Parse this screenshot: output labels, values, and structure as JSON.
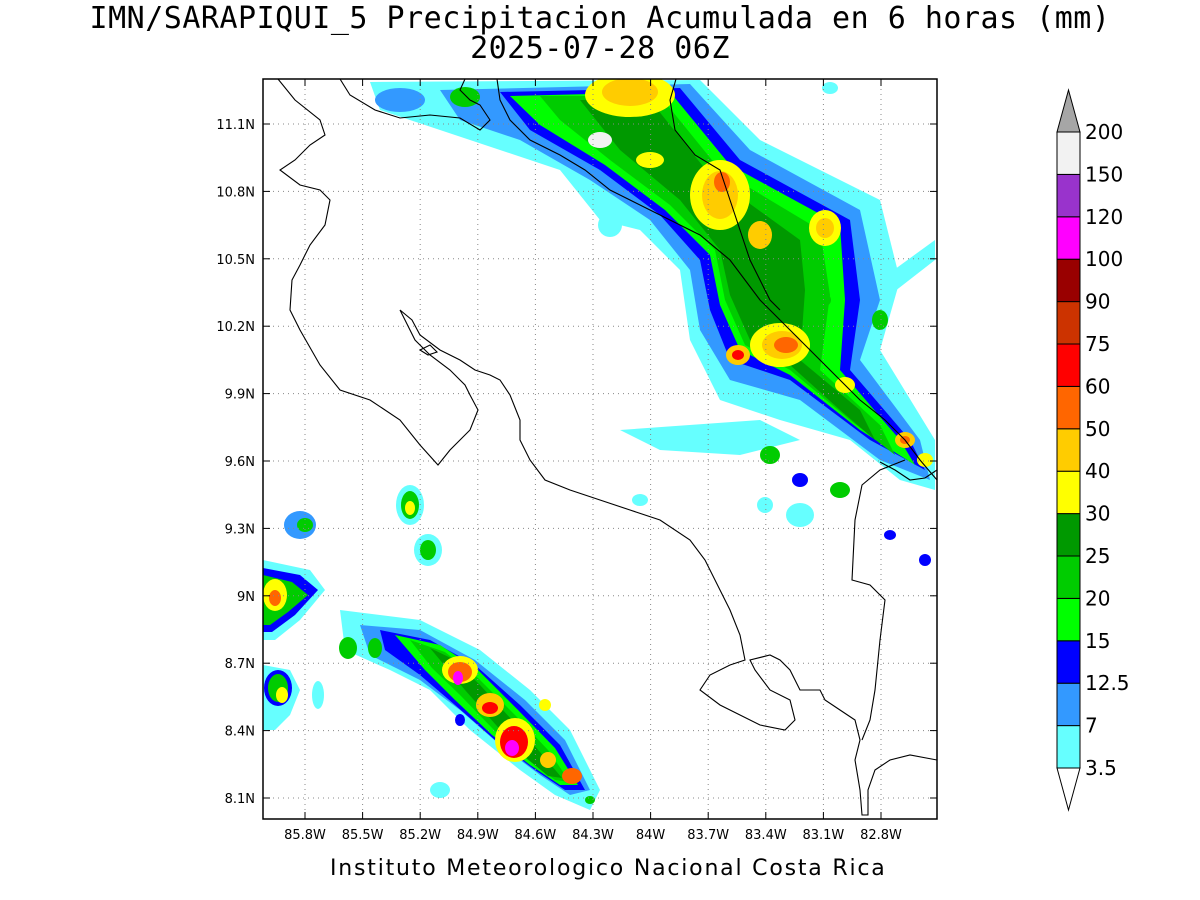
{
  "title": {
    "line1": "IMN/SARAPIQUI_5 Precipitacion Acumulada en 6 horas (mm)",
    "line2": "2025-07-28 06Z"
  },
  "footer": "Instituto Meteorologico Nacional Costa Rica",
  "axes": {
    "lat_ticks": [
      "11.1N",
      "10.8N",
      "10.5N",
      "10.2N",
      "9.9N",
      "9.6N",
      "9.3N",
      "9N",
      "8.7N",
      "8.4N",
      "8.1N"
    ],
    "lon_ticks": [
      "85.8W",
      "85.5W",
      "85.2W",
      "84.9W",
      "84.6W",
      "84.3W",
      "84W",
      "83.7W",
      "83.4W",
      "83.1W",
      "82.8W"
    ],
    "grid": true
  },
  "colorbar": {
    "levels": [
      "3.5",
      "7",
      "12.5",
      "15",
      "20",
      "25",
      "30",
      "40",
      "50",
      "60",
      "75",
      "90",
      "100",
      "120",
      "150",
      "200"
    ],
    "colors": [
      "#66ffff",
      "#3399ff",
      "#0000ff",
      "#00ff00",
      "#00cc00",
      "#009900",
      "#ffff00",
      "#ffcc00",
      "#ff6600",
      "#ff0000",
      "#cc3300",
      "#990000",
      "#ff00ff",
      "#9933cc",
      "#f2f2f2"
    ],
    "top_arrow_color": "#a6a6a6",
    "bottom_arrow_color": "#ffffff"
  }
}
